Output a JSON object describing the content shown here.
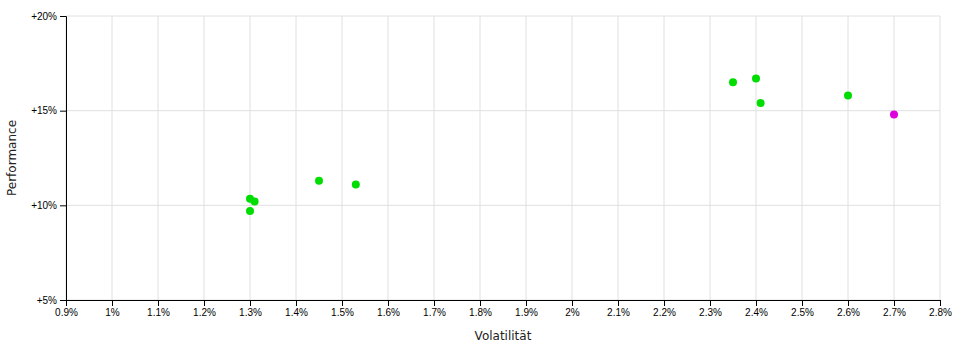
{
  "chart_data": {
    "type": "scatter",
    "xlabel": "Volatilität",
    "ylabel": "Performance",
    "xlim": [
      0.009,
      0.028
    ],
    "ylim": [
      0.05,
      0.2
    ],
    "xticks": [
      {
        "value": 0.009,
        "label": "0.9%"
      },
      {
        "value": 0.01,
        "label": "1%"
      },
      {
        "value": 0.011,
        "label": "1.1%"
      },
      {
        "value": 0.012,
        "label": "1.2%"
      },
      {
        "value": 0.013,
        "label": "1.3%"
      },
      {
        "value": 0.014,
        "label": "1.4%"
      },
      {
        "value": 0.015,
        "label": "1.5%"
      },
      {
        "value": 0.016,
        "label": "1.6%"
      },
      {
        "value": 0.017,
        "label": "1.7%"
      },
      {
        "value": 0.018,
        "label": "1.8%"
      },
      {
        "value": 0.019,
        "label": "1.9%"
      },
      {
        "value": 0.02,
        "label": "2%"
      },
      {
        "value": 0.021,
        "label": "2.1%"
      },
      {
        "value": 0.022,
        "label": "2.2%"
      },
      {
        "value": 0.023,
        "label": "2.3%"
      },
      {
        "value": 0.024,
        "label": "2.4%"
      },
      {
        "value": 0.025,
        "label": "2.5%"
      },
      {
        "value": 0.026,
        "label": "2.6%"
      },
      {
        "value": 0.027,
        "label": "2.7%"
      },
      {
        "value": 0.028,
        "label": "2.8%"
      }
    ],
    "yticks": [
      {
        "value": 0.05,
        "label": "+5%"
      },
      {
        "value": 0.1,
        "label": "+10%"
      },
      {
        "value": 0.15,
        "label": "+15%"
      },
      {
        "value": 0.2,
        "label": "+20%"
      }
    ],
    "grid": true,
    "series": [
      {
        "color": "#00dd00",
        "x": [
          0.013,
          0.0131,
          0.013,
          0.0145,
          0.0153,
          0.0235,
          0.024,
          0.0241,
          0.026
        ],
        "values": [
          0.1035,
          0.102,
          0.097,
          0.113,
          0.111,
          0.165,
          0.167,
          0.154,
          0.158
        ]
      },
      {
        "color": "#dd00dd",
        "x": [
          0.027
        ],
        "values": [
          0.148
        ]
      }
    ]
  }
}
